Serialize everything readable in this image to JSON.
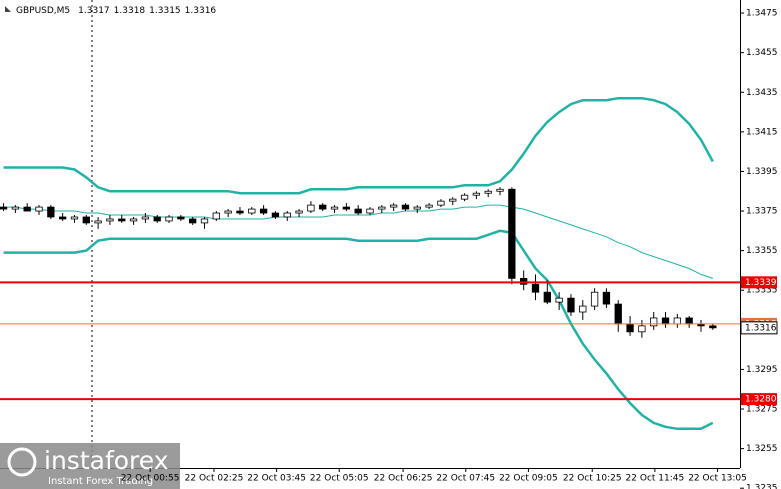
{
  "chart_data": {
    "type": "candlestick",
    "symbol": "GBPUSD,M5",
    "header_values": [
      1.3317,
      1.3318,
      1.3315,
      1.3316
    ],
    "ohlc": [
      [
        1.3377,
        1.3379,
        1.3375,
        1.3376
      ],
      [
        1.3376,
        1.3378,
        1.3374,
        1.3377
      ],
      [
        1.3377,
        1.3379,
        1.3375,
        1.3375
      ],
      [
        1.3375,
        1.3378,
        1.3373,
        1.3377
      ],
      [
        1.3377,
        1.3378,
        1.3371,
        1.3372
      ],
      [
        1.3372,
        1.3374,
        1.337,
        1.3371
      ],
      [
        1.3371,
        1.3373,
        1.3369,
        1.3372
      ],
      [
        1.3372,
        1.3373,
        1.3368,
        1.3369
      ],
      [
        1.3369,
        1.3372,
        1.3366,
        1.337
      ],
      [
        1.337,
        1.3373,
        1.3368,
        1.3371
      ],
      [
        1.3371,
        1.3373,
        1.3369,
        1.337
      ],
      [
        1.337,
        1.3372,
        1.3368,
        1.3371
      ],
      [
        1.3371,
        1.3374,
        1.3369,
        1.3372
      ],
      [
        1.3372,
        1.3373,
        1.3369,
        1.337
      ],
      [
        1.337,
        1.3373,
        1.3369,
        1.3372
      ],
      [
        1.3372,
        1.3373,
        1.337,
        1.3371
      ],
      [
        1.3371,
        1.3372,
        1.3368,
        1.3369
      ],
      [
        1.3369,
        1.3372,
        1.3366,
        1.3371
      ],
      [
        1.3371,
        1.3375,
        1.337,
        1.3374
      ],
      [
        1.3374,
        1.3376,
        1.3372,
        1.3375
      ],
      [
        1.3375,
        1.3377,
        1.3373,
        1.3374
      ],
      [
        1.3374,
        1.3377,
        1.3373,
        1.3376
      ],
      [
        1.3376,
        1.3378,
        1.3373,
        1.3374
      ],
      [
        1.3374,
        1.3375,
        1.3371,
        1.3372
      ],
      [
        1.3372,
        1.3375,
        1.337,
        1.3374
      ],
      [
        1.3374,
        1.3376,
        1.3372,
        1.3375
      ],
      [
        1.3375,
        1.338,
        1.3374,
        1.3378
      ],
      [
        1.3378,
        1.3379,
        1.3375,
        1.3376
      ],
      [
        1.3376,
        1.3378,
        1.3374,
        1.3377
      ],
      [
        1.3377,
        1.3379,
        1.3375,
        1.3376
      ],
      [
        1.3376,
        1.3378,
        1.3373,
        1.3374
      ],
      [
        1.3374,
        1.3377,
        1.3373,
        1.3376
      ],
      [
        1.3376,
        1.3378,
        1.3374,
        1.3377
      ],
      [
        1.3377,
        1.3379,
        1.3375,
        1.3378
      ],
      [
        1.3378,
        1.3379,
        1.3375,
        1.3376
      ],
      [
        1.3376,
        1.3378,
        1.3374,
        1.3377
      ],
      [
        1.3377,
        1.3379,
        1.3376,
        1.3378
      ],
      [
        1.3378,
        1.3381,
        1.3377,
        1.338
      ],
      [
        1.338,
        1.3382,
        1.3378,
        1.3381
      ],
      [
        1.3381,
        1.3384,
        1.338,
        1.3383
      ],
      [
        1.3383,
        1.3385,
        1.3381,
        1.3384
      ],
      [
        1.3384,
        1.3386,
        1.3382,
        1.3385
      ],
      [
        1.3385,
        1.3387,
        1.3383,
        1.3386
      ],
      [
        1.3386,
        1.3387,
        1.3338,
        1.3341
      ],
      [
        1.3341,
        1.3345,
        1.3335,
        1.3338
      ],
      [
        1.3338,
        1.3343,
        1.333,
        1.3334
      ],
      [
        1.3334,
        1.334,
        1.3328,
        1.3329
      ],
      [
        1.3329,
        1.3334,
        1.3325,
        1.3331
      ],
      [
        1.3331,
        1.3333,
        1.3322,
        1.3324
      ],
      [
        1.3324,
        1.333,
        1.332,
        1.3327
      ],
      [
        1.3327,
        1.3336,
        1.3325,
        1.3334
      ],
      [
        1.3334,
        1.3336,
        1.3326,
        1.3328
      ],
      [
        1.3328,
        1.333,
        1.3314,
        1.3318
      ],
      [
        1.3318,
        1.3322,
        1.3312,
        1.3314
      ],
      [
        1.3314,
        1.332,
        1.3311,
        1.3317
      ],
      [
        1.3317,
        1.3324,
        1.3315,
        1.3321
      ],
      [
        1.3321,
        1.3324,
        1.3316,
        1.3318
      ],
      [
        1.3318,
        1.3323,
        1.3316,
        1.3321
      ],
      [
        1.3321,
        1.3322,
        1.3316,
        1.3318
      ],
      [
        1.3318,
        1.332,
        1.3314,
        1.3317
      ],
      [
        1.3317,
        1.3318,
        1.3315,
        1.3316
      ]
    ],
    "series": [
      {
        "color": "#1fb3a6",
        "width": 2.5,
        "values": [
          1.3397,
          1.3397,
          1.3397,
          1.3397,
          1.3397,
          1.3397,
          1.3396,
          1.3392,
          1.3387,
          1.3385,
          1.3385,
          1.3385,
          1.3385,
          1.3385,
          1.3385,
          1.3385,
          1.3385,
          1.3385,
          1.3385,
          1.3385,
          1.3384,
          1.3384,
          1.3384,
          1.3384,
          1.3384,
          1.3384,
          1.3386,
          1.3386,
          1.3386,
          1.3386,
          1.3387,
          1.3387,
          1.3387,
          1.3387,
          1.3387,
          1.3387,
          1.3387,
          1.3387,
          1.3387,
          1.3388,
          1.3388,
          1.3388,
          1.339,
          1.3396,
          1.3404,
          1.3413,
          1.342,
          1.3425,
          1.3429,
          1.3431,
          1.3431,
          1.3431,
          1.3432,
          1.3432,
          1.3432,
          1.3431,
          1.3429,
          1.3425,
          1.3419,
          1.3411,
          1.34
        ]
      },
      {
        "color": "#1fb3a6",
        "width": 1,
        "values": [
          1.3377,
          1.3377,
          1.3376,
          1.3376,
          1.3375,
          1.3375,
          1.3375,
          1.3374,
          1.3374,
          1.3373,
          1.3373,
          1.3373,
          1.3373,
          1.3372,
          1.3372,
          1.3372,
          1.3372,
          1.3372,
          1.3371,
          1.3371,
          1.3371,
          1.3371,
          1.3371,
          1.3372,
          1.3372,
          1.3372,
          1.3372,
          1.3372,
          1.3373,
          1.3373,
          1.3373,
          1.3373,
          1.3374,
          1.3374,
          1.3375,
          1.3375,
          1.3375,
          1.3376,
          1.3376,
          1.3377,
          1.3377,
          1.3378,
          1.3378,
          1.3377,
          1.3376,
          1.3374,
          1.3372,
          1.337,
          1.3368,
          1.3366,
          1.3364,
          1.3362,
          1.3359,
          1.3357,
          1.3354,
          1.3352,
          1.335,
          1.3348,
          1.3346,
          1.3343,
          1.3341
        ]
      },
      {
        "color": "#1fb3a6",
        "width": 2.5,
        "values": [
          1.3354,
          1.3354,
          1.3354,
          1.3354,
          1.3354,
          1.3354,
          1.3354,
          1.3355,
          1.336,
          1.3361,
          1.3361,
          1.3361,
          1.3361,
          1.3361,
          1.3361,
          1.3361,
          1.3361,
          1.3361,
          1.3361,
          1.3361,
          1.3361,
          1.3361,
          1.3361,
          1.3361,
          1.3361,
          1.3361,
          1.3361,
          1.3361,
          1.3361,
          1.3361,
          1.336,
          1.336,
          1.336,
          1.336,
          1.336,
          1.336,
          1.3361,
          1.3361,
          1.3361,
          1.3361,
          1.3361,
          1.3363,
          1.3365,
          1.3364,
          1.3355,
          1.3346,
          1.334,
          1.333,
          1.3318,
          1.3308,
          1.33,
          1.3293,
          1.3285,
          1.3278,
          1.3272,
          1.3268,
          1.3266,
          1.3265,
          1.3265,
          1.3265,
          1.3268
        ]
      }
    ],
    "price_lines": [
      {
        "value": 1.3339,
        "color": "#ee0000",
        "width": 2
      },
      {
        "value": {
          "value": 1.328,
          "label": "1.3280"
        },
        "color": "#ee0000",
        "width": 2
      },
      {
        "value": 1.3318,
        "color": "#e8703c",
        "width": 1
      }
    ],
    "last_price": 1.3316,
    "xlim": [
      -0.3,
      62.3
    ],
    "ylim": [
      1.32346,
      1.34816
    ],
    "yticks": [
      1.3475,
      1.3455,
      1.3435,
      1.3415,
      1.3395,
      1.3375,
      1.3355,
      1.3335,
      1.3295,
      1.3275,
      1.3255,
      1.3235
    ],
    "xticks": [
      {
        "value": 12.4,
        "label": "22 Oct 00:55"
      },
      {
        "value": 17.8,
        "label": "22 Oct 02:25"
      },
      {
        "value": 23.1,
        "label": "22 Oct 03:45"
      },
      {
        "value": 28.4,
        "label": "22 Oct 05:05"
      },
      {
        "value": 33.8,
        "label": "22 Oct 06:25"
      },
      {
        "value": 39.1,
        "label": "22 Oct 07:45"
      },
      {
        "value": 44.4,
        "label": "22 Oct 09:05"
      },
      {
        "value": 49.8,
        "label": "22 Oct 10:25"
      },
      {
        "value": 55.1,
        "label": "22 Oct 11:45"
      },
      {
        "value": 60.4,
        "label": "22 Oct 13:05"
      }
    ],
    "watermark": {
      "brand": "instaforex",
      "tagline": "Instant Forex Trading"
    }
  }
}
